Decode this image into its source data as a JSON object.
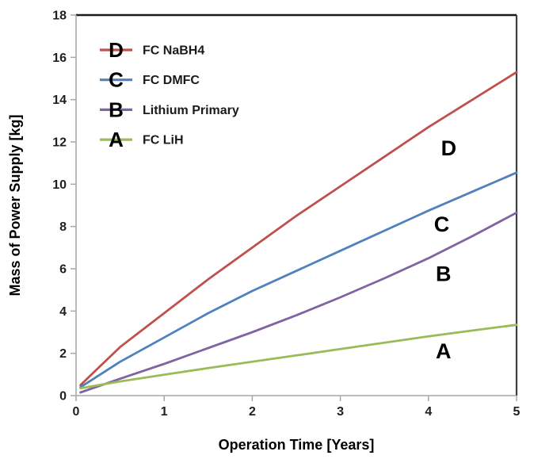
{
  "figure": {
    "background": "#ffffff"
  },
  "chart_data": {
    "type": "line",
    "title": "",
    "xlabel": "Operation Time [Years]",
    "ylabel": "Mass of Power Supply [kg]",
    "xlim": [
      0,
      5
    ],
    "ylim": [
      0,
      18
    ],
    "xticks": [
      0,
      1,
      2,
      3,
      4,
      5
    ],
    "yticks": [
      0,
      2,
      4,
      6,
      8,
      10,
      12,
      14,
      16,
      18
    ],
    "grid": false,
    "legend_position": "inside-top-left",
    "x": [
      0.05,
      0.5,
      1,
      1.5,
      2,
      2.5,
      3,
      3.5,
      4,
      4.5,
      5
    ],
    "series": [
      {
        "letter": "D",
        "name": "FC NaBH4",
        "color": "#C0504D",
        "values": [
          0.5,
          2.3,
          3.9,
          5.5,
          7.0,
          8.5,
          9.9,
          11.3,
          12.7,
          14.0,
          15.3
        ],
        "label_pos": {
          "x": 4.23,
          "y": 11.7
        }
      },
      {
        "letter": "C",
        "name": "FC DMFC",
        "color": "#4F81BD",
        "values": [
          0.4,
          1.6,
          2.75,
          3.9,
          4.95,
          5.9,
          6.85,
          7.8,
          8.75,
          9.65,
          10.55
        ],
        "label_pos": {
          "x": 4.15,
          "y": 8.1
        }
      },
      {
        "letter": "B",
        "name": "Lithium Primary",
        "color": "#8064A2",
        "values": [
          0.15,
          0.8,
          1.5,
          2.25,
          3.0,
          3.8,
          4.65,
          5.55,
          6.5,
          7.55,
          8.65
        ],
        "label_pos": {
          "x": 4.17,
          "y": 5.75
        }
      },
      {
        "letter": "A",
        "name": "FC LiH",
        "color": "#9BBB59",
        "values": [
          0.35,
          0.67,
          0.99,
          1.3,
          1.6,
          1.9,
          2.2,
          2.5,
          2.8,
          3.08,
          3.35
        ],
        "label_pos": {
          "x": 4.17,
          "y": 2.1
        }
      }
    ],
    "axis_colors": {
      "top_border": "#1a1a1a",
      "right_border": "#3d3d3d",
      "left_axis": "#a6a6a6",
      "bottom_axis": "#a6a6a6",
      "tick": "#a6a6a6",
      "tick_label": "#1f1f1f",
      "axis_title": "#000000",
      "annotation": "#000000"
    }
  }
}
